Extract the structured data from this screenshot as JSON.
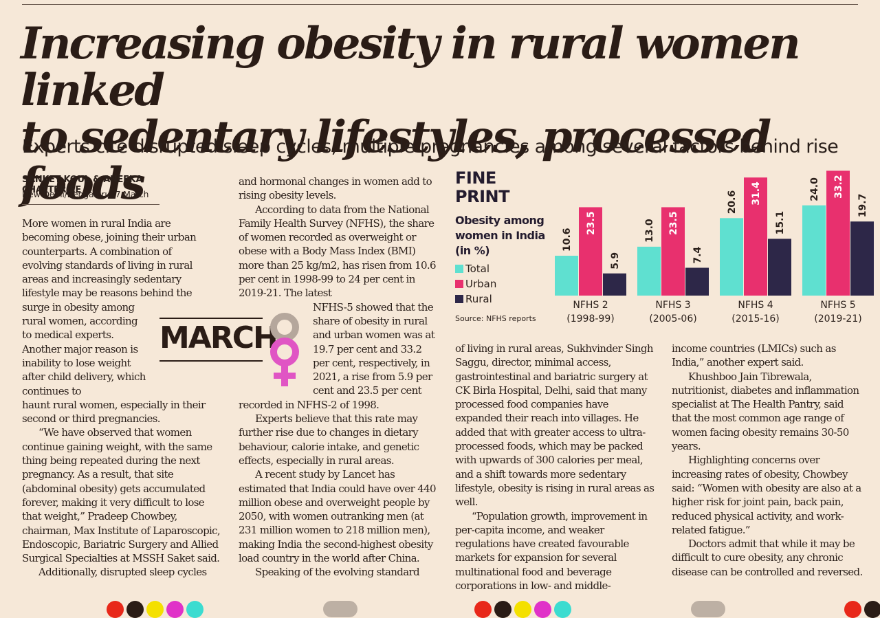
{
  "article": {
    "headline_line1": "Increasing obesity in rural women linked",
    "headline_line2": "to sedentary lifestyles, processed foods",
    "deck": "Experts cite disrupted sleep cycles, multiple pregnancies among several factors behind rise",
    "byline": "SANKET KOUL & ANEEKA CHATTERJEE",
    "dateline": "New Delhi/Bengaluru, 7 March",
    "col1": {
      "p1a": "More women in rural India are becoming obese, joining their urban counterparts. A combination of evolving standards of living in rural areas and increasingly sedentary lifestyle may be reasons behind the surge in obesity among",
      "p1b": "rural women, according to medical experts. Another major reason is inability to lose weight after child delivery, which continues to",
      "p1c": "haunt rural women, especially in their second or third pregnancies.",
      "p2": "“We have observed that women continue gaining weight, with the same thing being repeated during the next pregnancy. As a result, that site (abdominal obesity) gets accumulated forever, making it very difficult to lose that weight,” Pradeep Chowbey, chairman, Max Institute of Laparoscopic, Endoscopic, Bariatric Surgery and Allied Surgical Specialties at MSSH Saket said.",
      "p3": "Additionally, disrupted sleep cycles"
    },
    "col2": {
      "p1": "and hormonal changes in women add to rising obesity levels.",
      "p2": "According to data from the National Family Health Survey (NFHS), the share of women recorded as overweight or obese with a Body Mass Index (BMI) more than 25 kg/m2, has risen from 10.6 per cent in 1998-99 to 24 per cent in 2019-21. The latest",
      "p2b": "NFHS-5 showed that the share of obesity in rural and urban women was at 19.7 per cent and 33.2 per cent, respectively, in 2021, a rise from 5.9 per cent and 23.5 per cent",
      "p2c": "recorded in NFHS-2 of 1998.",
      "p3": "Experts believe that this rate may further rise due to changes in dietary behaviour, calorie intake, and genetic effects, especially in rural areas.",
      "p4": "A recent study by Lancet has estimated that India could have over 440 million obese and overweight people by 2050, with women outranking men (at 231 million women to 218 million men), making India the second-highest obesity load country in the world after China.",
      "p5": "Speaking of the evolving standard"
    },
    "col3": {
      "p1": "of living in rural areas, Sukhvinder Singh Saggu, director, minimal access, gastrointestinal and bariatric surgery at CK Birla Hospital, Delhi, said that many processed food companies have expanded their reach into villages. He added that with greater access to ultra-processed foods, which may be packed with upwards of 300 calories per meal, and a shift towards more sedentary lifestyle, obesity is rising in rural areas as well.",
      "p2": "“Population growth, improvement in per-capita income, and weaker regulations have created favourable markets for expansion for several multinational food and beverage corporations in low- and middle-"
    },
    "col4": {
      "p1": "income countries (LMICs) such as India,” another expert said.",
      "p2": "Khushboo Jain Tibrewala, nutritionist, diabetes and inflammation specialist at The Health Pantry, said that the most common age range of women facing obesity remains 30-50 years.",
      "p3": "Highlighting concerns over increasing rates of obesity, Chowbey said: “Women with obesity are also at a higher risk for joint pain, back pain, reduced physical activity, and work-related fatigue.”",
      "p4": "Doctors admit that while it may be difficult to cure obesity, any chronic disease can be controlled and reversed."
    }
  },
  "march_art": {
    "word": "MARCH",
    "symbol_colors": [
      "#b5a79c",
      "#e055c4"
    ]
  },
  "fine_print": {
    "title_line1": "FINE",
    "title_line2": "PRINT",
    "subtitle": "Obesity among women in India (in %)",
    "source": "Source: NFHS reports"
  },
  "chart_data": {
    "type": "bar",
    "title": "Obesity among women in India (in %)",
    "categories": [
      "NFHS 2",
      "NFHS 3",
      "NFHS 4",
      "NFHS 5"
    ],
    "category_years": [
      "(1998-99)",
      "(2005-06)",
      "(2015-16)",
      "(2019-21)"
    ],
    "series": [
      {
        "name": "Total",
        "color": "#5fe0d0",
        "values": [
          10.6,
          13.0,
          20.6,
          24.0
        ]
      },
      {
        "name": "Urban",
        "color": "#e8306e",
        "values": [
          23.5,
          23.5,
          31.4,
          33.2
        ]
      },
      {
        "name": "Rural",
        "color": "#2d2748",
        "values": [
          5.9,
          7.4,
          15.1,
          19.7
        ]
      }
    ],
    "value_labels": [
      [
        "10.6",
        "23.5",
        "5.9"
      ],
      [
        "13.0",
        "23.5",
        "7.4"
      ],
      [
        "20.6",
        "31.4",
        "15.1"
      ],
      [
        "24.0",
        "33.2",
        "19.7"
      ]
    ],
    "legend_position": "left",
    "ylim": [
      0,
      34
    ],
    "grid": false,
    "xlabel": "",
    "ylabel": ""
  },
  "registration_marks": {
    "colors": [
      "#e8281a",
      "#2a1c16",
      "#f4e000",
      "#e032c8",
      "#3cdcd0"
    ]
  }
}
